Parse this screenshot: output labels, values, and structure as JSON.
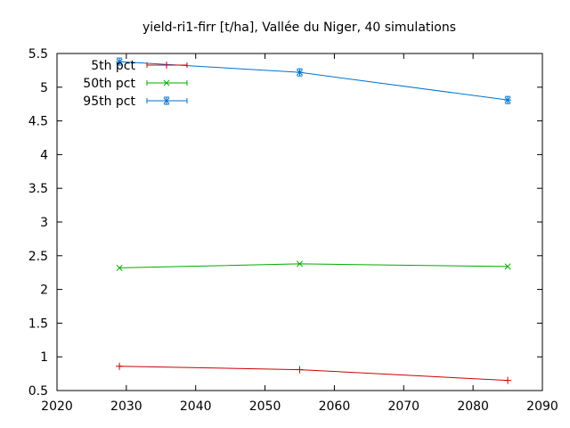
{
  "chart_data": {
    "type": "line",
    "title": "yield-ri1-firr [t/ha], Vallée du Niger, 40 simulations",
    "xlabel": "",
    "ylabel": "",
    "xlim": [
      2020,
      2090
    ],
    "ylim": [
      0.5,
      5.5
    ],
    "x_ticks": [
      "2020",
      "2030",
      "2040",
      "2050",
      "2060",
      "2070",
      "2080",
      "2090"
    ],
    "y_ticks": [
      "0.5",
      "1",
      "1.5",
      "2",
      "2.5",
      "3",
      "3.5",
      "4",
      "4.5",
      "5",
      "5.5"
    ],
    "grid": false,
    "legend_position": "top-left",
    "series": [
      {
        "name": "5th pct",
        "color": "#cc0000",
        "marker": "plus",
        "x": [
          2029,
          2055,
          2085
        ],
        "y": [
          0.86,
          0.81,
          0.65
        ]
      },
      {
        "name": "50th pct",
        "color": "#00aa00",
        "marker": "cross",
        "x": [
          2029,
          2055,
          2085
        ],
        "y": [
          2.32,
          2.38,
          2.34
        ]
      },
      {
        "name": "95th pct",
        "color": "#0072cc",
        "marker": "star",
        "x": [
          2029,
          2055,
          2085
        ],
        "y": [
          5.38,
          5.22,
          4.81
        ]
      }
    ]
  }
}
